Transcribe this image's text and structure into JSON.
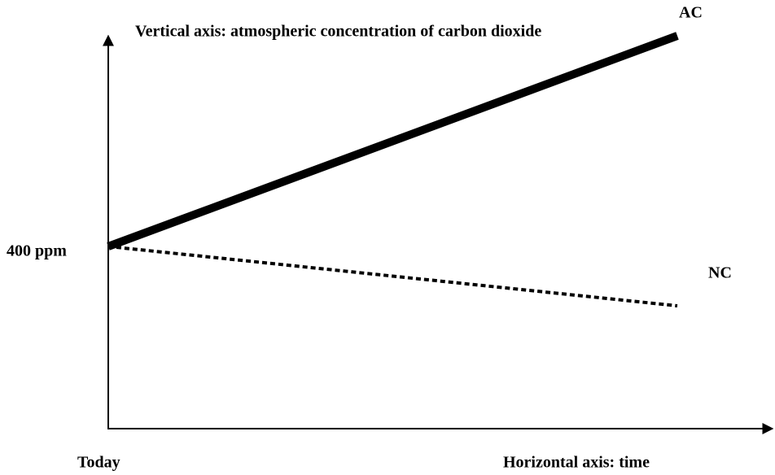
{
  "title": "Vertical axis: atmospheric concentration of carbon dioxide",
  "y_label": "400 ppm",
  "x_start_label": "Today",
  "x_axis_label": "Horizontal axis: time",
  "lines": [
    {
      "label": "AC"
    },
    {
      "label": "NC"
    }
  ]
}
